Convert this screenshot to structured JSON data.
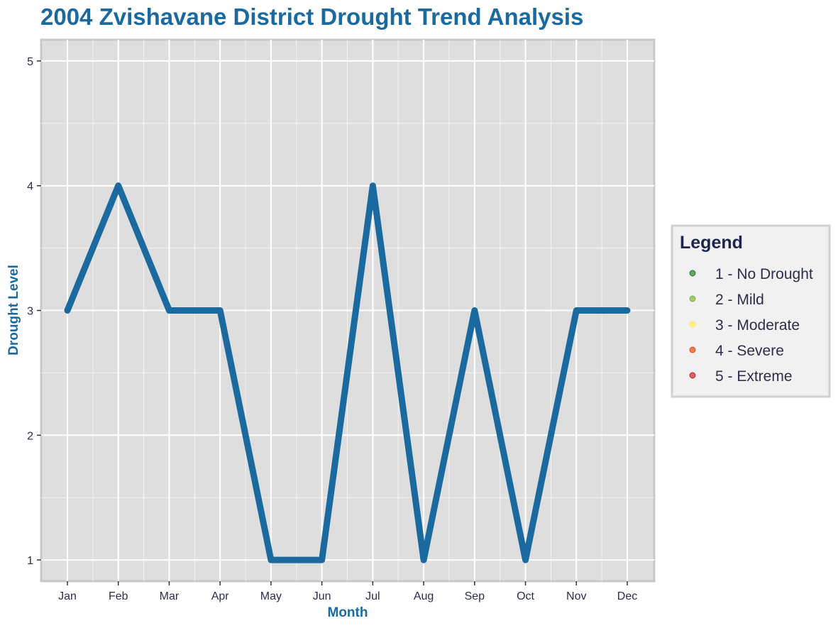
{
  "chart_data": {
    "type": "line",
    "title": "2004 Zvishavane District Drought Trend Analysis",
    "xlabel": "Month",
    "ylabel": "Drought Level",
    "categories": [
      "Jan",
      "Feb",
      "Mar",
      "Apr",
      "May",
      "Jun",
      "Jul",
      "Aug",
      "Sep",
      "Oct",
      "Nov",
      "Dec"
    ],
    "values": [
      3,
      4,
      3,
      3,
      1,
      1,
      4,
      1,
      3,
      1,
      3,
      3
    ],
    "ylim": [
      0.83,
      5.17
    ],
    "yticks": [
      1,
      2,
      3,
      4,
      5
    ],
    "grid": true,
    "line_color": "#1a6aa0",
    "panel_color": "#dedede",
    "legend": {
      "title": "Legend",
      "position": "right",
      "items": [
        {
          "label": "1 - No Drought",
          "color": "#2e7d32"
        },
        {
          "label": "2 - Mild",
          "color": "#7cb342"
        },
        {
          "label": "3 - Moderate",
          "color": "#ffee58"
        },
        {
          "label": "4 - Severe",
          "color": "#e64a19"
        },
        {
          "label": "5 - Extreme",
          "color": "#c62828"
        }
      ]
    }
  }
}
